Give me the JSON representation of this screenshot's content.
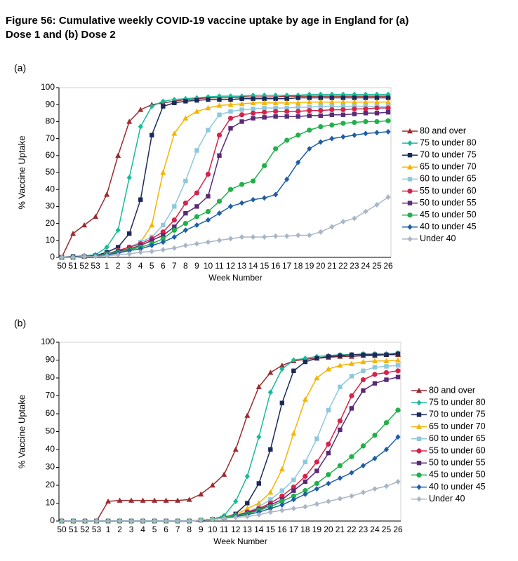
{
  "title": "Figure 56: Cumulative weekly COVID-19 vaccine uptake by age in England for (a) Dose 1 and (b) Dose 2",
  "chart_data": [
    {
      "type": "line",
      "panel": "(a)",
      "ylabel": "% Vaccine Uptake",
      "xlabel": "Week Number",
      "legend": "right",
      "ylim": [
        0,
        100
      ],
      "yticks": [
        0,
        10,
        20,
        30,
        40,
        50,
        60,
        70,
        80,
        90,
        100
      ],
      "categories": [
        "50",
        "51",
        "52",
        "53",
        "1",
        "2",
        "3",
        "4",
        "5",
        "6",
        "7",
        "8",
        "9",
        "10",
        "11",
        "12",
        "13",
        "14",
        "15",
        "16",
        "17",
        "18",
        "19",
        "20",
        "21",
        "22",
        "23",
        "24",
        "25",
        "26"
      ],
      "series": [
        {
          "name": "80 and over",
          "color": "#9b2b2e",
          "marker": "triangle",
          "values": [
            0,
            14,
            19,
            24,
            37,
            60,
            80,
            87,
            90,
            91,
            92,
            93,
            93.5,
            94,
            94,
            94,
            94.5,
            94.5,
            94.5,
            94.5,
            95,
            95,
            95,
            95,
            95,
            95,
            95,
            95,
            95,
            95
          ]
        },
        {
          "name": "75 to under 80",
          "color": "#1bb99a",
          "marker": "diamond",
          "values": [
            0,
            0.5,
            1,
            1.5,
            6,
            16,
            47,
            77,
            89,
            92,
            93,
            93.5,
            94,
            94.5,
            95,
            95,
            95,
            95.5,
            95.5,
            95.5,
            95.5,
            95.5,
            96,
            96,
            96,
            96,
            96,
            96,
            96,
            96
          ]
        },
        {
          "name": "70 to under 75",
          "color": "#1c2a5a",
          "marker": "square",
          "values": [
            0,
            0.5,
            0.5,
            1,
            3,
            6,
            14,
            34,
            72,
            89,
            91,
            92,
            92.5,
            93,
            93,
            93,
            93.5,
            93.5,
            93.5,
            93.5,
            93.5,
            94,
            94,
            94,
            94,
            94,
            94,
            94,
            94,
            94
          ]
        },
        {
          "name": "65 to under 70",
          "color": "#f5b400",
          "marker": "triangle",
          "values": [
            0,
            0,
            0.5,
            1,
            2,
            4,
            6,
            9,
            19,
            50,
            73,
            82,
            86,
            88,
            89.5,
            90,
            90.5,
            91,
            91,
            91,
            91,
            91,
            91.5,
            91.5,
            91.5,
            91.5,
            91.5,
            91.5,
            91.5,
            91.5
          ]
        },
        {
          "name": "60 to under 65",
          "color": "#8ec8de",
          "marker": "square",
          "values": [
            0,
            0,
            0.5,
            1,
            2,
            4,
            6,
            9,
            12,
            19,
            30,
            45,
            63,
            75,
            84,
            86,
            87,
            87.5,
            88,
            88,
            88,
            88.5,
            88.5,
            89,
            89,
            89,
            89,
            89,
            89,
            89
          ]
        },
        {
          "name": "55 to under 60",
          "color": "#d5234b",
          "marker": "circle",
          "values": [
            0,
            0,
            0.5,
            1,
            2,
            4,
            6,
            8,
            11,
            15,
            22,
            32,
            38,
            49,
            72,
            82,
            84,
            85,
            85.5,
            86,
            86,
            86,
            86.5,
            86.5,
            87,
            87,
            87.5,
            87.5,
            88,
            88
          ]
        },
        {
          "name": "50 to under 55",
          "color": "#5a2a78",
          "marker": "square",
          "values": [
            0,
            0,
            0.5,
            1,
            2,
            3.5,
            5,
            7,
            10,
            13,
            18,
            26,
            30,
            36,
            60,
            76,
            80,
            82,
            82.5,
            83,
            83,
            83,
            83.5,
            83.5,
            84,
            84,
            84.5,
            85,
            85,
            85.5
          ]
        },
        {
          "name": "45 to under 50",
          "color": "#21b04b",
          "marker": "circle",
          "values": [
            0,
            0,
            0.5,
            1,
            2,
            3,
            4.5,
            6,
            8,
            11,
            16,
            20,
            24,
            27,
            33,
            40,
            43,
            45,
            54,
            64,
            69,
            72,
            75,
            77,
            78,
            79,
            79.5,
            80,
            80,
            80.5
          ]
        },
        {
          "name": "40 to under 45",
          "color": "#1e5ea6",
          "marker": "diamond",
          "values": [
            0,
            0,
            0.5,
            1,
            1.5,
            2.5,
            4,
            5,
            7,
            9,
            12,
            16,
            19,
            22,
            26,
            30,
            32,
            34,
            35,
            37,
            46,
            56,
            64,
            68,
            70,
            71,
            72,
            73,
            73.5,
            74
          ]
        },
        {
          "name": "Under 40",
          "color": "#a8b6c6",
          "marker": "diamond",
          "values": [
            0,
            0,
            0.5,
            0.5,
            1,
            1.5,
            2,
            3,
            3.5,
            4.5,
            5.5,
            7,
            8,
            9,
            10,
            11,
            12,
            12,
            12,
            12.5,
            12.5,
            13,
            13,
            15,
            18,
            21,
            23,
            27,
            31,
            35.5
          ]
        }
      ]
    },
    {
      "type": "line",
      "panel": "(b)",
      "ylabel": "% Vaccine Uptake",
      "xlabel": "Week Number",
      "legend": "right",
      "ylim": [
        0,
        100
      ],
      "yticks": [
        0,
        10,
        20,
        30,
        40,
        50,
        60,
        70,
        80,
        90,
        100
      ],
      "categories": [
        "50",
        "51",
        "52",
        "53",
        "1",
        "2",
        "3",
        "4",
        "5",
        "6",
        "7",
        "8",
        "9",
        "10",
        "11",
        "12",
        "13",
        "14",
        "15",
        "16",
        "17",
        "18",
        "19",
        "20",
        "21",
        "22",
        "23",
        "24",
        "25",
        "26"
      ],
      "series": [
        {
          "name": "80 and over",
          "color": "#9b2b2e",
          "marker": "triangle",
          "values": [
            0,
            0,
            0,
            0,
            11,
            11.5,
            11.5,
            11.5,
            11.5,
            11.5,
            11.5,
            12,
            15,
            20,
            26,
            40,
            59,
            75,
            83,
            87,
            89.5,
            90.5,
            91,
            91.5,
            92,
            92,
            92.5,
            92.5,
            93,
            93
          ]
        },
        {
          "name": "75 to under 80",
          "color": "#1bb99a",
          "marker": "diamond",
          "values": [
            0,
            0,
            0,
            0,
            0,
            0,
            0,
            0,
            0,
            0,
            0,
            0,
            0.5,
            1,
            3,
            11,
            25,
            47,
            72,
            85,
            90,
            91,
            92,
            92.5,
            93,
            93,
            93.5,
            93.5,
            93.5,
            94
          ]
        },
        {
          "name": "70 to under 75",
          "color": "#1c2a5a",
          "marker": "square",
          "values": [
            0,
            0,
            0,
            0,
            0,
            0,
            0,
            0,
            0,
            0,
            0,
            0,
            0.5,
            1,
            2,
            4,
            10,
            21,
            40,
            66,
            84,
            89,
            91,
            92,
            92.5,
            93,
            93,
            93,
            93,
            93.5
          ]
        },
        {
          "name": "65 to under 70",
          "color": "#f5b400",
          "marker": "triangle",
          "values": [
            0,
            0,
            0,
            0,
            0,
            0,
            0,
            0,
            0,
            0,
            0,
            0,
            0.5,
            1,
            2,
            3.5,
            7,
            10,
            16,
            29,
            49,
            68,
            80,
            85,
            87,
            88,
            89,
            89.5,
            89.5,
            90
          ]
        },
        {
          "name": "60 to under 65",
          "color": "#8ec8de",
          "marker": "square",
          "values": [
            0,
            0,
            0,
            0,
            0,
            0,
            0,
            0,
            0,
            0,
            0,
            0,
            0.5,
            1,
            2,
            3,
            5,
            8,
            12,
            17,
            23,
            33,
            46,
            62,
            75,
            81,
            84,
            86,
            86.5,
            87
          ]
        },
        {
          "name": "55 to under 60",
          "color": "#d5234b",
          "marker": "circle",
          "values": [
            0,
            0,
            0,
            0,
            0,
            0,
            0,
            0,
            0,
            0,
            0,
            0,
            0.5,
            1,
            2,
            3,
            5,
            7,
            10,
            14,
            19,
            25,
            33,
            43,
            56,
            70,
            79,
            82,
            83,
            84
          ]
        },
        {
          "name": "50 to under 55",
          "color": "#5a2a78",
          "marker": "square",
          "values": [
            0,
            0,
            0,
            0,
            0,
            0,
            0,
            0,
            0,
            0,
            0,
            0,
            0.5,
            1,
            2,
            3,
            4.5,
            6.5,
            9,
            12,
            17,
            22,
            28,
            38,
            51,
            63,
            73,
            77,
            79,
            80.5
          ]
        },
        {
          "name": "45 to under 50",
          "color": "#21b04b",
          "marker": "circle",
          "values": [
            0,
            0,
            0,
            0,
            0,
            0,
            0,
            0,
            0,
            0,
            0,
            0,
            0.5,
            1,
            2,
            3,
            4,
            6,
            8,
            11,
            14,
            17,
            21,
            26,
            31,
            36,
            42,
            48,
            55,
            62
          ]
        },
        {
          "name": "40 to under 45",
          "color": "#1e5ea6",
          "marker": "diamond",
          "values": [
            0,
            0,
            0,
            0,
            0,
            0,
            0,
            0,
            0,
            0,
            0,
            0,
            0.5,
            1,
            1.5,
            2.5,
            3.5,
            5,
            7,
            9,
            12,
            15,
            18,
            21,
            24,
            27,
            31,
            35,
            40,
            47
          ]
        },
        {
          "name": "Under 40",
          "color": "#a8b6c6",
          "marker": "diamond",
          "values": [
            0,
            0,
            0,
            0,
            0,
            0,
            0,
            0,
            0,
            0,
            0,
            0,
            0.5,
            1,
            1.5,
            2,
            2.5,
            3.5,
            5,
            6,
            7,
            8,
            9.5,
            11,
            12.5,
            14,
            16,
            18,
            19.5,
            22
          ]
        }
      ]
    }
  ]
}
